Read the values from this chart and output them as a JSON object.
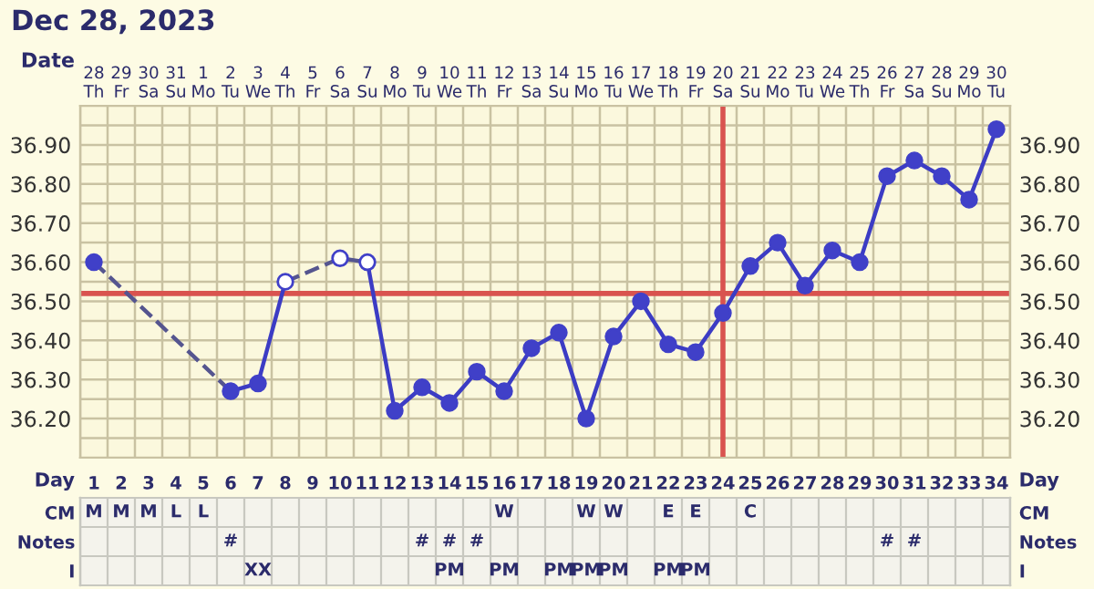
{
  "chart_data": [
    {
      "type": "line",
      "title": "Dec 28, 2023",
      "xlabel": "Date",
      "xlim": [
        "2023-12-27T12:00",
        "2024-01-30T12:00"
      ],
      "xticks": [
        {
          "value": "2023-12-28",
          "label": "28\nTh"
        },
        {
          "value": "2023-12-29",
          "label": "29\nFr"
        },
        {
          "value": "2023-12-30",
          "label": "30\nSa"
        },
        {
          "value": "2023-12-31",
          "label": "31\nSu"
        },
        {
          "value": "2024-01-01",
          "label": "1\nMo"
        },
        {
          "value": "2024-01-02",
          "label": "2\nTu"
        },
        {
          "value": "2024-01-03",
          "label": "3\nWe"
        },
        {
          "value": "2024-01-04",
          "label": "4\nTh"
        },
        {
          "value": "2024-01-05",
          "label": "5\nFr"
        },
        {
          "value": "2024-01-06",
          "label": "6\nSa"
        },
        {
          "value": "2024-01-07",
          "label": "7\nSu"
        },
        {
          "value": "2024-01-08",
          "label": "8\nMo"
        },
        {
          "value": "2024-01-09",
          "label": "9\nTu"
        },
        {
          "value": "2024-01-10",
          "label": "10\nWe"
        },
        {
          "value": "2024-01-11",
          "label": "11\nTh"
        },
        {
          "value": "2024-01-12",
          "label": "12\nFr"
        },
        {
          "value": "2024-01-13",
          "label": "13\nSa"
        },
        {
          "value": "2024-01-14",
          "label": "14\nSu"
        },
        {
          "value": "2024-01-15",
          "label": "15\nMo"
        },
        {
          "value": "2024-01-16",
          "label": "16\nTu"
        },
        {
          "value": "2024-01-17",
          "label": "17\nWe"
        },
        {
          "value": "2024-01-18",
          "label": "18\nTh"
        },
        {
          "value": "2024-01-19",
          "label": "19\nFr"
        },
        {
          "value": "2024-01-20",
          "label": "20\nSa"
        },
        {
          "value": "2024-01-21",
          "label": "21\nSu"
        },
        {
          "value": "2024-01-22",
          "label": "22\nMo"
        },
        {
          "value": "2024-01-23",
          "label": "23\nTu"
        },
        {
          "value": "2024-01-24",
          "label": "24\nWe"
        },
        {
          "value": "2024-01-25",
          "label": "25\nTh"
        },
        {
          "value": "2024-01-26",
          "label": "26\nFr"
        },
        {
          "value": "2024-01-27",
          "label": "27\nSa"
        },
        {
          "value": "2024-01-28",
          "label": "28\nSu"
        },
        {
          "value": "2024-01-29",
          "label": "29\nMo"
        },
        {
          "value": "2024-01-30",
          "label": "30\nTu"
        }
      ],
      "ylim": [
        36.1,
        37.0
      ],
      "yticks": [
        {
          "value": 36.1,
          "label": null
        },
        {
          "value": 36.15,
          "label": null
        },
        {
          "value": 36.2,
          "label": "36.20"
        },
        {
          "value": 36.25,
          "label": null
        },
        {
          "value": 36.3,
          "label": "36.30"
        },
        {
          "value": 36.35,
          "label": null
        },
        {
          "value": 36.4,
          "label": "36.40"
        },
        {
          "value": 36.45,
          "label": null
        },
        {
          "value": 36.5,
          "label": "36.50"
        },
        {
          "value": 36.55,
          "label": null
        },
        {
          "value": 36.6,
          "label": "36.60"
        },
        {
          "value": 36.65,
          "label": null
        },
        {
          "value": 36.7,
          "label": "36.70"
        },
        {
          "value": 36.75,
          "label": null
        },
        {
          "value": 36.8,
          "label": "36.80"
        },
        {
          "value": 36.85,
          "label": null
        },
        {
          "value": 36.9,
          "label": "36.90"
        },
        {
          "value": 36.95,
          "label": null
        },
        {
          "value": 37.0,
          "label": null
        }
      ],
      "y2lim": [
        36.1,
        37.0
      ],
      "y2ticks": [
        {
          "value": 36.1,
          "label": null
        },
        {
          "value": 36.15,
          "label": null
        },
        {
          "value": 36.2,
          "label": "36.20"
        },
        {
          "value": 36.25,
          "label": null
        },
        {
          "value": 36.3,
          "label": "36.30"
        },
        {
          "value": 36.35,
          "label": null
        },
        {
          "value": 36.4,
          "label": "36.40"
        },
        {
          "value": 36.45,
          "label": null
        },
        {
          "value": 36.5,
          "label": "36.50"
        },
        {
          "value": 36.55,
          "label": null
        },
        {
          "value": 36.6,
          "label": "36.60"
        },
        {
          "value": 36.65,
          "label": null
        },
        {
          "value": 36.7,
          "label": "36.70"
        },
        {
          "value": 36.75,
          "label": null
        },
        {
          "value": 36.8,
          "label": "36.80"
        },
        {
          "value": 36.85,
          "label": null
        },
        {
          "value": 36.9,
          "label": "36.90"
        },
        {
          "value": 36.95,
          "label": null
        },
        {
          "value": 37.0,
          "label": null
        }
      ],
      "grid": true,
      "series": [
        {
          "type": "line",
          "line_style": "dashed",
          "color": "#55558f",
          "x": [
            "2023-12-28",
            "2024-01-02"
          ],
          "values": [
            36.6,
            36.27
          ]
        },
        {
          "type": "line",
          "line_style": "solid",
          "color": "#3c3cc4",
          "x": [
            "2024-01-02",
            "2024-01-03",
            "2024-01-04"
          ],
          "values": [
            36.27,
            36.29,
            36.55
          ]
        },
        {
          "type": "line",
          "line_style": "dashed",
          "color": "#55558f",
          "x": [
            "2024-01-04",
            "2024-01-06",
            "2024-01-07"
          ],
          "values": [
            36.55,
            36.61,
            36.6
          ]
        },
        {
          "type": "line",
          "line_style": "solid",
          "color": "#3c3cc4",
          "x": [
            "2024-01-07",
            "2024-01-08",
            "2024-01-09",
            "2024-01-10",
            "2024-01-11",
            "2024-01-12",
            "2024-01-13",
            "2024-01-14",
            "2024-01-15",
            "2024-01-16",
            "2024-01-17",
            "2024-01-18",
            "2024-01-19",
            "2024-01-20",
            "2024-01-21",
            "2024-01-22",
            "2024-01-23",
            "2024-01-24",
            "2024-01-25",
            "2024-01-26",
            "2024-01-27",
            "2024-01-28",
            "2024-01-29",
            "2024-01-30"
          ],
          "values": [
            36.6,
            36.22,
            36.28,
            36.24,
            36.32,
            36.27,
            36.38,
            36.42,
            36.2,
            36.41,
            36.5,
            36.39,
            36.37,
            36.47,
            36.59,
            36.65,
            36.54,
            36.63,
            36.6,
            36.82,
            36.86,
            36.82,
            36.76,
            36.94
          ]
        },
        {
          "type": "scatter",
          "marker": "circle",
          "color": "#4040c8",
          "x": [
            "2023-12-28",
            "2024-01-02",
            "2024-01-03",
            "2024-01-08",
            "2024-01-09",
            "2024-01-10",
            "2024-01-11",
            "2024-01-12",
            "2024-01-13",
            "2024-01-14",
            "2024-01-15",
            "2024-01-16",
            "2024-01-17",
            "2024-01-18",
            "2024-01-19",
            "2024-01-20",
            "2024-01-21",
            "2024-01-22",
            "2024-01-23",
            "2024-01-24",
            "2024-01-25",
            "2024-01-26",
            "2024-01-27",
            "2024-01-28",
            "2024-01-29",
            "2024-01-30"
          ],
          "values": [
            36.6,
            36.27,
            36.29,
            36.22,
            36.28,
            36.24,
            36.32,
            36.27,
            36.38,
            36.42,
            36.2,
            36.41,
            36.5,
            36.39,
            36.37,
            36.47,
            36.59,
            36.65,
            36.54,
            36.63,
            36.6,
            36.82,
            36.86,
            36.82,
            36.76,
            36.94
          ]
        },
        {
          "type": "scatter",
          "marker": "circle",
          "color": "#ffffff",
          "x": [
            "2024-01-04",
            "2024-01-06",
            "2024-01-07"
          ],
          "values": [
            36.55,
            36.61,
            36.6
          ]
        }
      ],
      "ref_lines": [
        {
          "axis": "y",
          "value": 36.52,
          "color": "#d9534f"
        },
        {
          "axis": "x",
          "value": "2024-01-20",
          "color": "#d9534f"
        }
      ]
    },
    {
      "type": "heatmap",
      "xlabel": "Day",
      "categories": [
        "1",
        "2",
        "3",
        "4",
        "5",
        "6",
        "7",
        "8",
        "9",
        "10",
        "11",
        "12",
        "13",
        "14",
        "15",
        "16",
        "17",
        "18",
        "19",
        "20",
        "21",
        "22",
        "23",
        "24",
        "25",
        "26",
        "27",
        "28",
        "29",
        "30",
        "31",
        "32",
        "33",
        "34"
      ],
      "y_categories": [
        "CM",
        "Notes",
        "I"
      ],
      "y2_categories": [
        "CM",
        "Notes",
        "I"
      ],
      "cells": [
        [
          null,
          null,
          null,
          null,
          null,
          null,
          null,
          null,
          null,
          null,
          null,
          null,
          null,
          null,
          null,
          null,
          null,
          null,
          null,
          null,
          null,
          null,
          null,
          null,
          null,
          null,
          null,
          null,
          null,
          null,
          null,
          null,
          null,
          null
        ],
        [
          null,
          null,
          null,
          null,
          null,
          null,
          null,
          null,
          null,
          null,
          null,
          null,
          null,
          null,
          null,
          null,
          null,
          null,
          null,
          null,
          null,
          null,
          null,
          null,
          null,
          null,
          null,
          null,
          null,
          null,
          null,
          null,
          null,
          null
        ],
        [
          null,
          null,
          null,
          null,
          null,
          null,
          null,
          null,
          null,
          null,
          null,
          null,
          null,
          null,
          null,
          null,
          null,
          null,
          null,
          null,
          null,
          null,
          null,
          null,
          null,
          null,
          null,
          null,
          null,
          null,
          null,
          null,
          null,
          null
        ]
      ],
      "cell_labels": [
        [
          "M",
          "M",
          "M",
          "L",
          "L",
          null,
          null,
          null,
          null,
          null,
          null,
          null,
          null,
          null,
          null,
          "W",
          null,
          null,
          "W",
          "W",
          null,
          "E",
          "E",
          null,
          "C",
          null,
          null,
          null,
          null,
          null,
          null,
          null,
          null,
          null
        ],
        [
          null,
          null,
          null,
          null,
          null,
          "#",
          null,
          null,
          null,
          null,
          null,
          null,
          "#",
          "#",
          "#",
          null,
          null,
          null,
          null,
          null,
          null,
          null,
          null,
          null,
          null,
          null,
          null,
          null,
          null,
          "#",
          "#",
          null,
          null,
          null
        ],
        [
          null,
          null,
          null,
          null,
          null,
          null,
          "XX",
          null,
          null,
          null,
          null,
          null,
          null,
          "PM",
          null,
          "PM",
          null,
          "PM",
          "PM",
          "PM",
          null,
          "PM",
          "PM",
          null,
          null,
          null,
          null,
          null,
          null,
          null,
          null,
          null,
          null,
          null
        ]
      ]
    }
  ]
}
